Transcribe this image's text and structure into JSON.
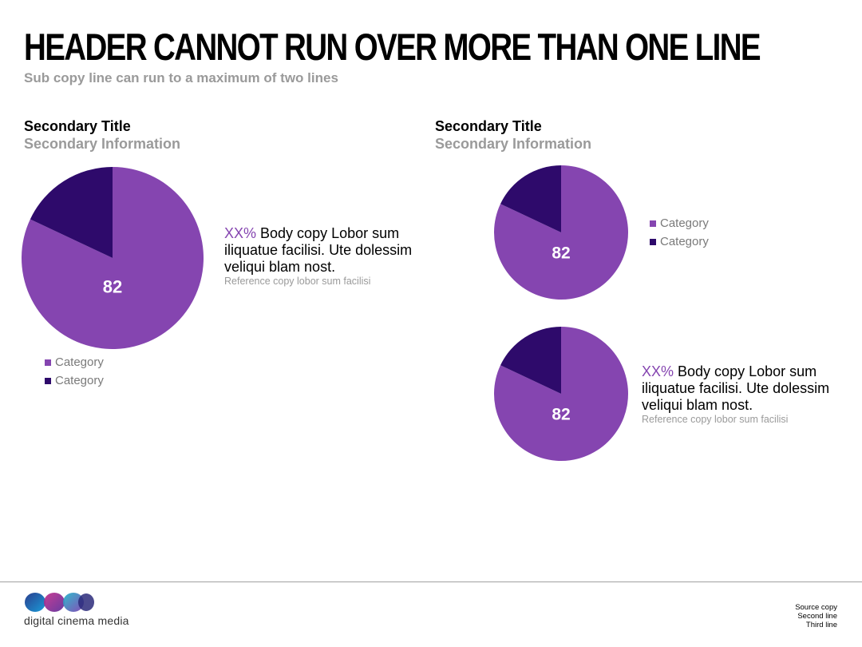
{
  "header": {
    "title": "HEADER CANNOT RUN OVER MORE THAN ONE LINE",
    "subcopy": "Sub copy line can run to a maximum of two lines"
  },
  "panels": {
    "left": {
      "secondary_title": "Secondary Title",
      "secondary_info": "Secondary Information",
      "callout": {
        "pct": "XX%",
        "body": " Body copy Lobor sum iliquatue facilisi. Ute dolessim veliqui blam nost.",
        "reference": "Reference copy lobor sum facilisi"
      }
    },
    "right": {
      "secondary_title": "Secondary Title",
      "secondary_info": "Secondary Information",
      "callout": {
        "pct": "XX%",
        "body": " Body copy Lobor sum iliquatue facilisi. Ute dolessim veliqui blam nost.",
        "reference": "Reference copy lobor sum facilisi"
      }
    }
  },
  "colors": {
    "primary": "#8545b0",
    "secondary": "#2e0a6b"
  },
  "chart_data": [
    {
      "type": "pie",
      "categories": [
        "Category",
        "Category"
      ],
      "values": [
        82,
        18
      ],
      "data_label": "82",
      "legend_placement": "bottom-left"
    },
    {
      "type": "pie",
      "categories": [
        "Category",
        "Category"
      ],
      "values": [
        82,
        18
      ],
      "data_label": "82",
      "legend_placement": "right"
    },
    {
      "type": "pie",
      "categories": [
        "Category",
        "Category"
      ],
      "values": [
        82,
        18
      ],
      "data_label": "82",
      "legend_placement": "none"
    }
  ],
  "footer": {
    "logo_text": "digital cinema media",
    "source_lines": [
      "Source copy",
      "Second line",
      "Third line"
    ]
  }
}
